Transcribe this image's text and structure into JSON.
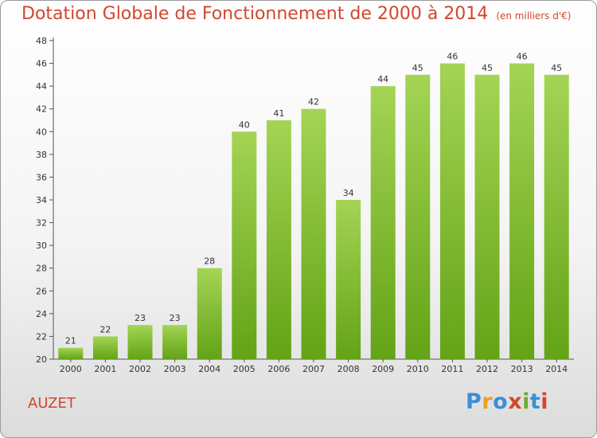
{
  "header": {
    "title": "Dotation Globale de Fonctionnement de 2000 à 2014",
    "subtitle": "(en milliers d'€)"
  },
  "footer": {
    "commune": "AUZET",
    "logo_text": "Proxiti"
  },
  "colors": {
    "title": "#d2462e",
    "bar_light": "#a4d455",
    "bar_dark": "#63a316",
    "logo_letters": [
      "#3a8fd6",
      "#e9a02a",
      "#3a8fd6",
      "#d2462e",
      "#6bb02a",
      "#3a8fd6",
      "#d2462e"
    ]
  },
  "chart_data": {
    "type": "bar",
    "categories": [
      "2000",
      "2001",
      "2002",
      "2003",
      "2004",
      "2005",
      "2006",
      "2007",
      "2008",
      "2009",
      "2010",
      "2011",
      "2012",
      "2013",
      "2014"
    ],
    "values": [
      21,
      22,
      23,
      23,
      28,
      40,
      41,
      42,
      34,
      44,
      45,
      46,
      45,
      46,
      45
    ],
    "ylim": [
      20,
      48
    ],
    "yticks": [
      20,
      22,
      24,
      26,
      28,
      30,
      32,
      34,
      36,
      38,
      40,
      42,
      44,
      46,
      48
    ],
    "data_labels": true,
    "grid": false
  }
}
